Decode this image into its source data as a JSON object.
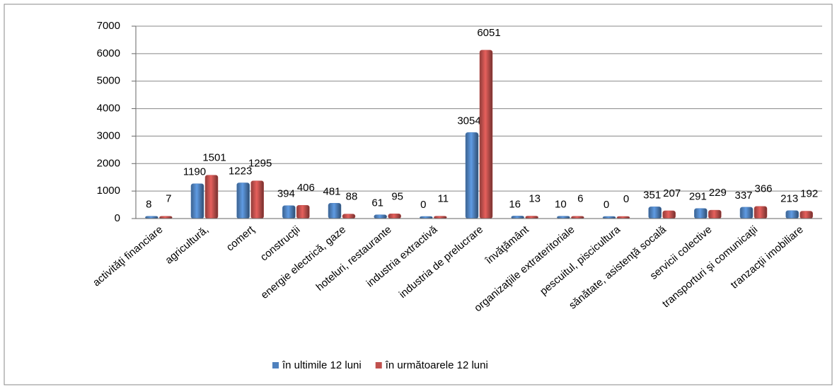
{
  "chart_data": {
    "type": "bar",
    "categories": [
      "activităţi financiare",
      "agricultură,",
      "comerţ",
      "construcţii",
      "energie electrică, gaze",
      "hoteluri, restaurante",
      "industria extractivă",
      "industria de prelucrare",
      "învăţământ",
      "organizaţiile extrateritoriale",
      "pescuitul, piscicultura",
      "sănătate, asistenţă socală",
      "servicii colective",
      "transporturi şi comunicaţii",
      "tranzacţii imobiliare"
    ],
    "series": [
      {
        "name": "în ultimile 12 luni",
        "color": "#4f81bd",
        "values": [
          8,
          1190,
          1223,
          394,
          481,
          61,
          0,
          3054,
          16,
          10,
          0,
          351,
          291,
          337,
          213
        ]
      },
      {
        "name": "în următoarele 12 luni",
        "color": "#c0504d",
        "values": [
          7,
          1501,
          1295,
          406,
          88,
          95,
          11,
          6051,
          13,
          6,
          0,
          207,
          229,
          366,
          192
        ]
      }
    ],
    "ylim": [
      0,
      7000
    ],
    "yticks": [
      0,
      1000,
      2000,
      3000,
      4000,
      5000,
      6000,
      7000
    ],
    "grid": true,
    "legend": "bottom"
  }
}
